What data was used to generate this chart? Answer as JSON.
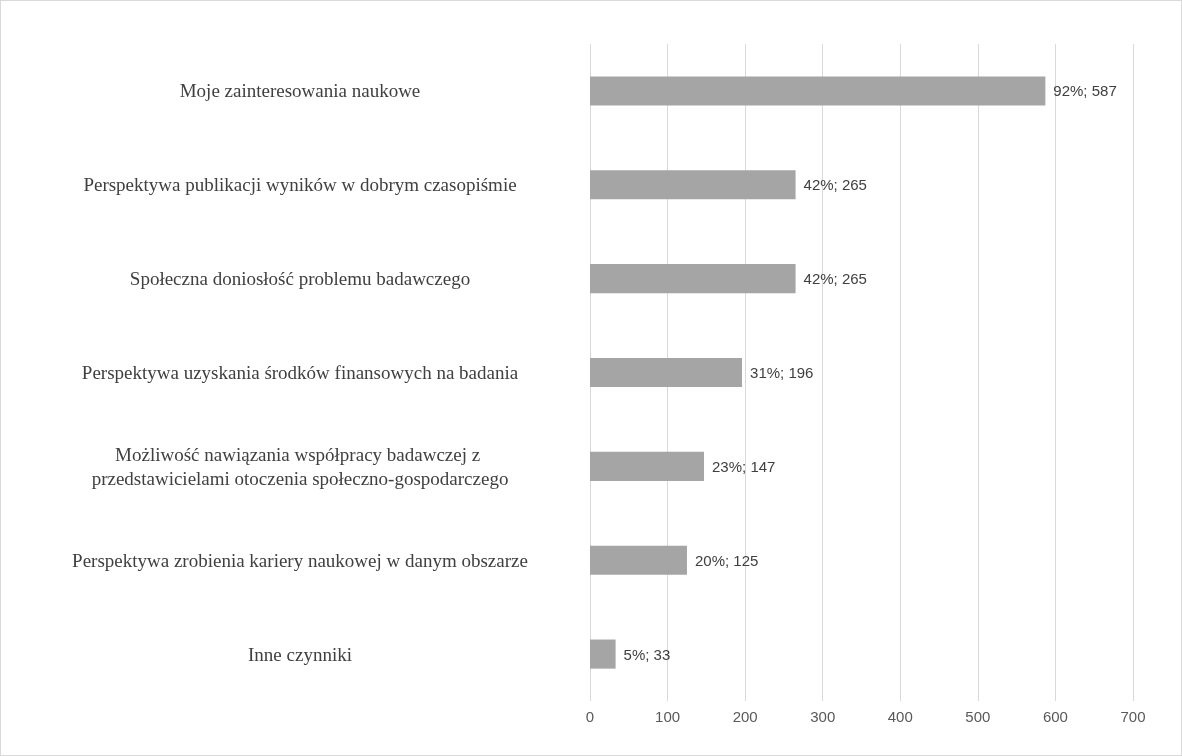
{
  "chart_data": {
    "type": "bar",
    "orientation": "horizontal",
    "categories": [
      "Moje zainteresowania naukowe",
      "Perspektywa publikacji wyników w dobrym czasopiśmie",
      "Społeczna doniosłość problemu badawczego",
      "Perspektywa uzyskania środków finansowych na badania",
      "Możliwość nawiązania współpracy badawczej z przedstawicielami otoczenia społeczno-gospodarczego",
      "Perspektywa zrobienia kariery naukowej w danym obszarze",
      "Inne czynniki"
    ],
    "values": [
      587,
      265,
      265,
      196,
      147,
      125,
      33
    ],
    "value_labels": [
      "92%; 587",
      "42%; 265",
      "42%; 265",
      "31%; 196",
      "23%; 147",
      "20%; 125",
      "5%; 33"
    ],
    "color": "#a5a5a5",
    "xlim": [
      0,
      700
    ],
    "xticks": [
      0,
      100,
      200,
      300,
      400,
      500,
      600,
      700
    ],
    "grid": "x"
  }
}
